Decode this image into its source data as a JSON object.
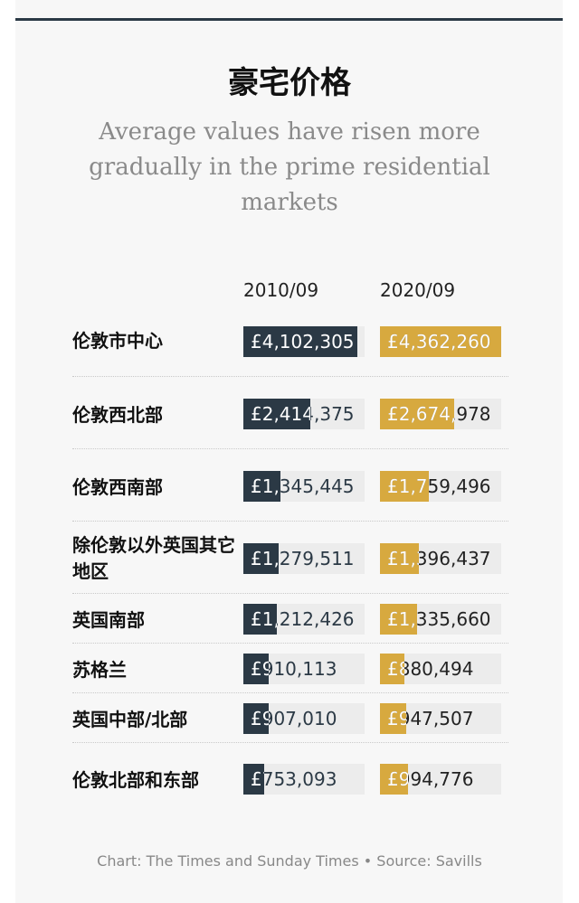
{
  "title": "豪宅价格",
  "subtitle": "Average values have risen more gradually in the prime residential markets",
  "footer": "Chart: The Times and Sunday Times • Source: Savills",
  "colors": {
    "series_2010": "#2b3945",
    "series_2020": "#d7a93f",
    "track": "#ececec"
  },
  "chart_data": {
    "type": "bar",
    "columns": [
      "2010/09",
      "2020/09"
    ],
    "categories": [
      "伦敦市中心",
      "伦敦西北部",
      "伦敦西南部",
      "除伦敦以外英国其它地区",
      "英国南部",
      "苏格兰",
      "英国中部/北部",
      "伦敦北部和东部"
    ],
    "series": [
      {
        "name": "2010/09",
        "values": [
          4102305,
          2414375,
          1345445,
          1279511,
          1212426,
          910113,
          907010,
          753093
        ],
        "labels": [
          "£4,102,305",
          "£2,414,375",
          "£1,345,445",
          "£1,279,511",
          "£1,212,426",
          "£910,113",
          "£907,010",
          "£753,093"
        ]
      },
      {
        "name": "2020/09",
        "values": [
          4362260,
          2674978,
          1759496,
          1396437,
          1335660,
          880494,
          947507,
          994776
        ],
        "labels": [
          "£4,362,260",
          "£2,674,978",
          "£1,759,496",
          "£1,396,437",
          "£1,335,660",
          "£880,494",
          "£947,507",
          "£994,776"
        ]
      }
    ],
    "xlim": [
      0,
      4362260
    ],
    "grid": false,
    "legend": "none"
  }
}
